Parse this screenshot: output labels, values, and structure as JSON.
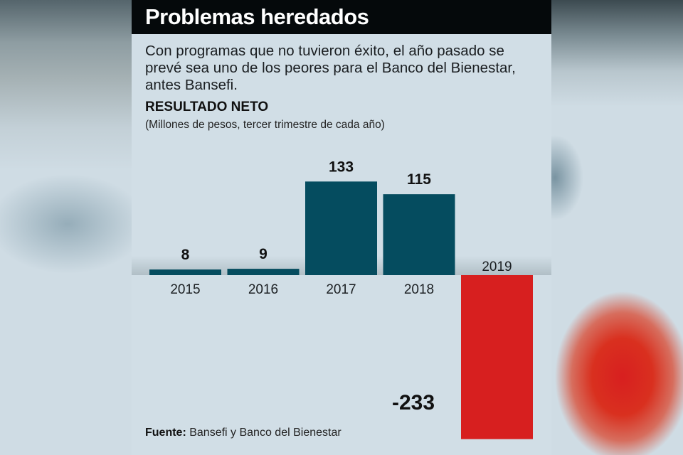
{
  "header": {
    "title": "Problemas heredados"
  },
  "subtitle": "Con programas que no tuvieron éxito, el año pasado se prevé sea uno de los peores para el Banco del Bienestar, antes Bansefi.",
  "section_title": "RESULTADO NETO",
  "unit_note": "(Millones de pesos, tercer trimestre de cada año)",
  "source": {
    "label": "Fuente:",
    "text": " Bansefi y Banco del Bienestar"
  },
  "colors": {
    "positive": "#054c5f",
    "negative": "#d71f1f",
    "header_bg": "#05090b",
    "panel_bg": "#d1dee6"
  },
  "chart_data": {
    "type": "bar",
    "title": "RESULTADO NETO",
    "subtitle": "(Millones de pesos, tercer trimestre de cada año)",
    "xlabel": "",
    "ylabel": "Millones de pesos",
    "categories": [
      "2015",
      "2016",
      "2017",
      "2018",
      "2019"
    ],
    "values": [
      8,
      9,
      133,
      115,
      -233
    ],
    "data_labels": [
      "8",
      "9",
      "133",
      "115",
      "-233"
    ],
    "ylim": [
      -233,
      133
    ],
    "grid": false,
    "legend": "none"
  }
}
